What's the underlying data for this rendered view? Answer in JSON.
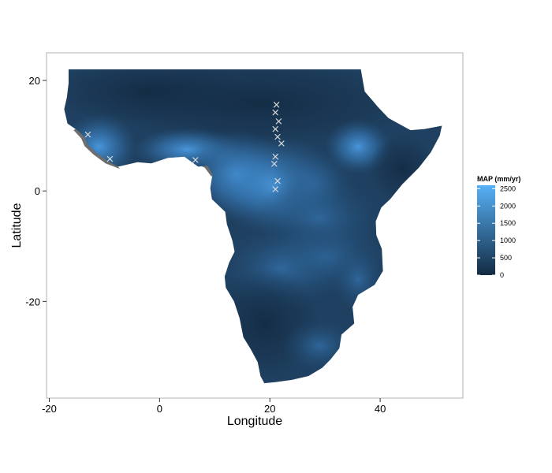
{
  "chart_data": {
    "type": "heatmap",
    "xlabel": "Longitude",
    "ylabel": "Latitude",
    "xlim": [
      -20.5,
      55
    ],
    "ylim": [
      -37.5,
      25
    ],
    "x_ticks": [
      -20,
      0,
      20,
      40
    ],
    "x_tick_labels": [
      "-20",
      "0",
      "20",
      "40"
    ],
    "y_ticks": [
      -20,
      0,
      20
    ],
    "y_tick_labels": [
      "-20",
      "0",
      "20"
    ],
    "grid": false,
    "legend": {
      "title": "MAP (mm/yr)",
      "placement": "right",
      "range": [
        0,
        2600
      ],
      "breaks": [
        0,
        500,
        1000,
        1500,
        2000,
        2500
      ],
      "break_labels": [
        "0",
        "500",
        "1000",
        "1500",
        "2000",
        "2500"
      ],
      "low_color": "#132b43",
      "high_color": "#56b1f7"
    },
    "colors": {
      "no_data": "#6e6e6e",
      "marker": "#d9d9d9",
      "panel_border": "#b3b3b3"
    },
    "markers": {
      "shape": "x",
      "points": [
        {
          "lon": 21.2,
          "lat": 15.6
        },
        {
          "lon": 21.0,
          "lat": 14.2
        },
        {
          "lon": 21.6,
          "lat": 12.6
        },
        {
          "lon": 21.0,
          "lat": 11.2
        },
        {
          "lon": 21.4,
          "lat": 9.8
        },
        {
          "lon": 22.1,
          "lat": 8.6
        },
        {
          "lon": 21.0,
          "lat": 6.2
        },
        {
          "lon": 20.8,
          "lat": 4.9
        },
        {
          "lon": 21.4,
          "lat": 1.8
        },
        {
          "lon": 21.0,
          "lat": 0.3
        },
        {
          "lon": -13.0,
          "lat": 10.2
        },
        {
          "lon": -9.0,
          "lat": 5.8
        },
        {
          "lon": 6.5,
          "lat": 5.6
        }
      ]
    }
  }
}
